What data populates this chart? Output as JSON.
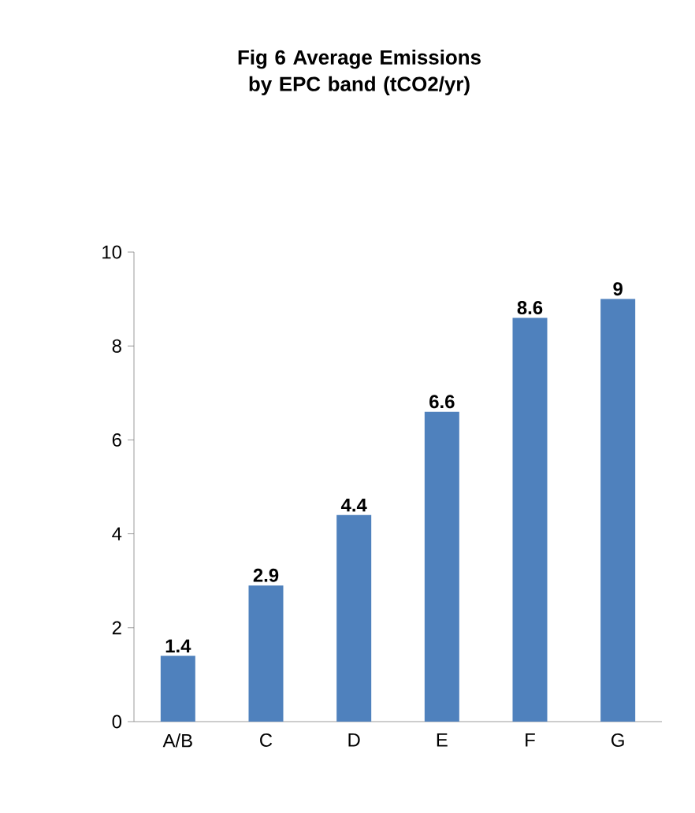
{
  "chart_data": {
    "type": "bar",
    "title": "Fig 6 Average Emissions by EPC band (tCO2/yr)",
    "categories": [
      "A/B",
      "C",
      "D",
      "E",
      "F",
      "G"
    ],
    "values": [
      1.4,
      2.9,
      4.4,
      6.6,
      8.6,
      9
    ],
    "color": "#4f81bd",
    "ylim": [
      0,
      10
    ],
    "yticks": [
      0,
      2,
      4,
      6,
      8,
      10
    ],
    "data_labels": true
  }
}
